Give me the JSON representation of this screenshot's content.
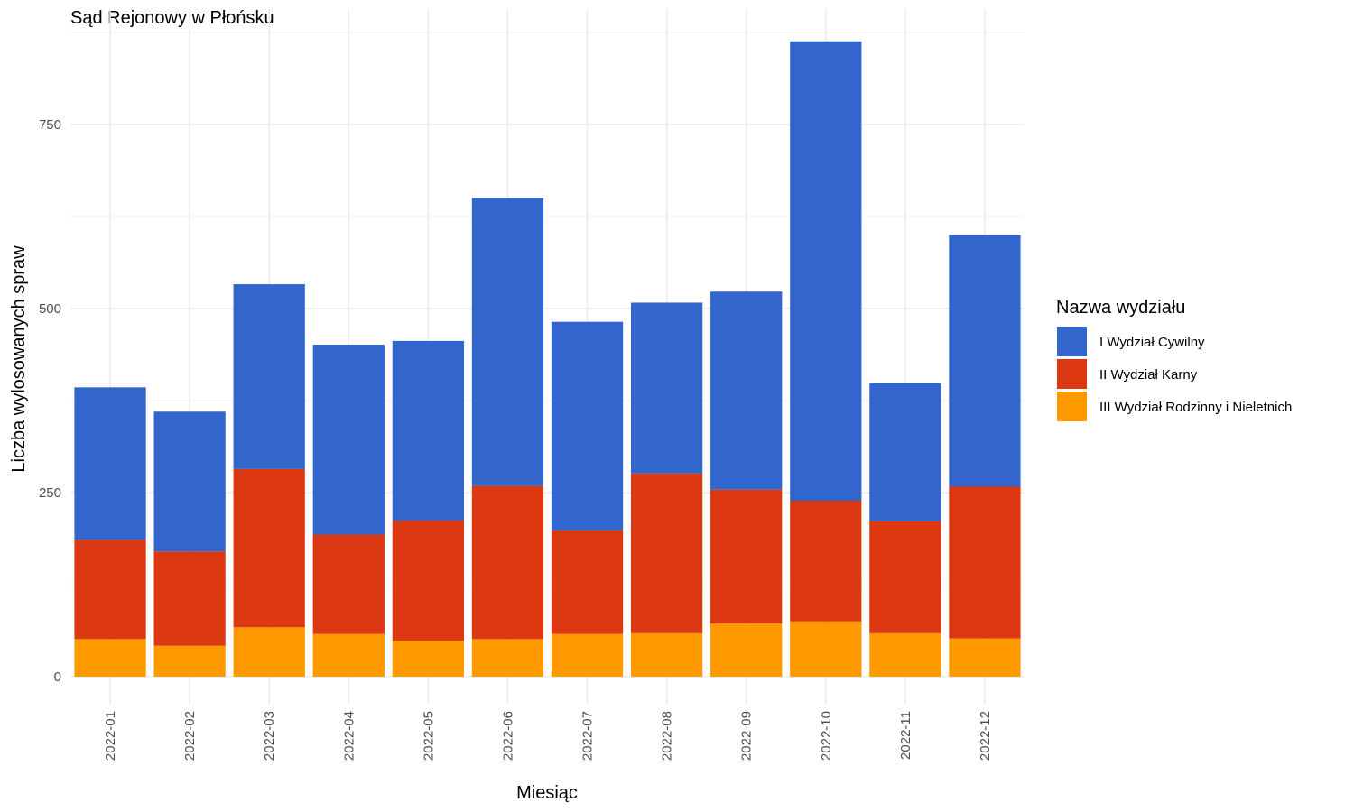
{
  "chart_data": {
    "type": "bar",
    "stacked": true,
    "title": "Sąd Rejonowy w Płońsku",
    "xlabel": "Miesiąc",
    "ylabel": "Liczba wylosowanych spraw",
    "ylim": [
      -35,
      890
    ],
    "yticks": [
      0,
      250,
      500,
      750
    ],
    "grid": true,
    "legend_position": "right",
    "legend_title": "Nazwa wydziału",
    "categories": [
      "2022-01",
      "2022-02",
      "2022-03",
      "2022-04",
      "2022-05",
      "2022-06",
      "2022-07",
      "2022-08",
      "2022-09",
      "2022-10",
      "2022-11",
      "2022-12"
    ],
    "series": [
      {
        "name": "III Wydział Rodzinny i Nieletnich",
        "color": "#FF9900",
        "values": [
          51,
          42,
          67,
          58,
          49,
          51,
          58,
          59,
          72,
          75,
          59,
          52
        ]
      },
      {
        "name": "II Wydział Karny",
        "color": "#DC3912",
        "values": [
          135,
          128,
          215,
          135,
          163,
          208,
          141,
          217,
          182,
          164,
          152,
          206
        ]
      },
      {
        "name": "I Wydział Cywilny",
        "color": "#3366CC",
        "values": [
          207,
          190,
          251,
          258,
          244,
          391,
          283,
          232,
          269,
          624,
          188,
          342
        ]
      }
    ],
    "legend_order": [
      "I Wydział Cywilny",
      "II Wydział Karny",
      "III Wydział Rodzinny i Nieletnich"
    ]
  }
}
